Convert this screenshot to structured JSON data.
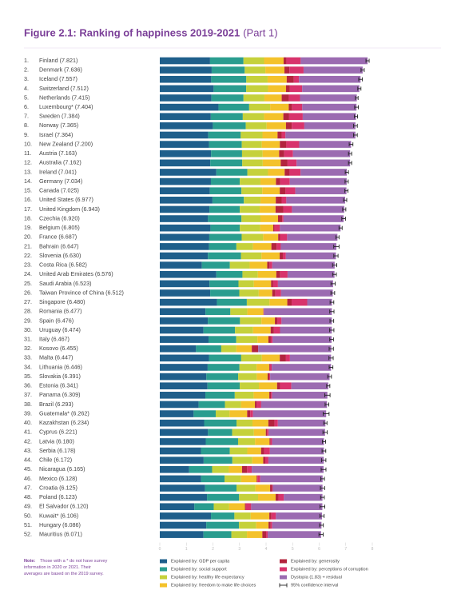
{
  "chart_data": {
    "type": "stacked-bar-horizontal",
    "title": "Figure 2.1: Ranking of happiness 2019-2021",
    "title_part": "(Part 1)",
    "ranks": [
      "1.",
      "2.",
      "3.",
      "4.",
      "5.",
      "6.",
      "7.",
      "8.",
      "9.",
      "10.",
      "11.",
      "12.",
      "13.",
      "14.",
      "15.",
      "16.",
      "17.",
      "18.",
      "19.",
      "20.",
      "21.",
      "22.",
      "23.",
      "24.",
      "25.",
      "26.",
      "27.",
      "28.",
      "29.",
      "30.",
      "31.",
      "32.",
      "33.",
      "34.",
      "35.",
      "36.",
      "37.",
      "38.",
      "39.",
      "40.",
      "41.",
      "42.",
      "43.",
      "44.",
      "45.",
      "46.",
      "47.",
      "48.",
      "49.",
      "50.",
      "51.",
      "52."
    ],
    "categories": [
      "Finland (7.821)",
      "Denmark (7.636)",
      "Iceland (7.557)",
      "Switzerland (7.512)",
      "Netherlands (7.415)",
      "Luxembourg* (7.404)",
      "Sweden (7.384)",
      "Norway (7.365)",
      "Israel (7.364)",
      "New Zealand (7.200)",
      "Austria (7.163)",
      "Australia (7.162)",
      "Ireland (7.041)",
      "Germany (7.034)",
      "Canada (7.025)",
      "United States (6.977)",
      "United Kingdom (6.943)",
      "Czechia (6.920)",
      "Belgium (6.805)",
      "France (6.687)",
      "Bahrain (6.647)",
      "Slovenia (6.630)",
      "Costa Rica (6.582)",
      "United Arab Emirates (6.576)",
      "Saudi Arabia (6.523)",
      "Taiwan Province of China (6.512)",
      "Singapore (6.480)",
      "Romania (6.477)",
      "Spain (6.476)",
      "Uruguay (6.474)",
      "Italy (6.467)",
      "Kosovo (6.455)",
      "Malta (6.447)",
      "Lithuania (6.446)",
      "Slovakia (6.391)",
      "Estonia (6.341)",
      "Panama (6.309)",
      "Brazil (6.293)",
      "Guatemala* (6.262)",
      "Kazakhstan (6.234)",
      "Cyprus (6.221)",
      "Latvia (6.180)",
      "Serbia (6.178)",
      "Chile (6.172)",
      "Nicaragua (6.165)",
      "Mexico (6.128)",
      "Croatia (6.125)",
      "Poland (6.123)",
      "El Salvador (6.120)",
      "Kuwait* (6.106)",
      "Hungary (6.086)",
      "Mauritius (6.071)"
    ],
    "scores": [
      7.821,
      7.636,
      7.557,
      7.512,
      7.415,
      7.404,
      7.384,
      7.365,
      7.364,
      7.2,
      7.163,
      7.162,
      7.041,
      7.034,
      7.025,
      6.977,
      6.943,
      6.92,
      6.805,
      6.687,
      6.647,
      6.63,
      6.582,
      6.576,
      6.523,
      6.512,
      6.48,
      6.477,
      6.476,
      6.474,
      6.467,
      6.455,
      6.447,
      6.446,
      6.391,
      6.341,
      6.309,
      6.293,
      6.262,
      6.234,
      6.221,
      6.18,
      6.178,
      6.172,
      6.165,
      6.128,
      6.125,
      6.123,
      6.12,
      6.106,
      6.086,
      6.071
    ],
    "errors": [
      0.06,
      0.06,
      0.07,
      0.06,
      0.05,
      0.07,
      0.06,
      0.07,
      0.07,
      0.07,
      0.06,
      0.06,
      0.06,
      0.06,
      0.06,
      0.06,
      0.06,
      0.07,
      0.06,
      0.06,
      0.1,
      0.08,
      0.08,
      0.07,
      0.08,
      0.07,
      0.07,
      0.08,
      0.07,
      0.08,
      0.07,
      0.08,
      0.08,
      0.07,
      0.07,
      0.06,
      0.1,
      0.07,
      0.11,
      0.06,
      0.08,
      0.06,
      0.07,
      0.08,
      0.09,
      0.07,
      0.08,
      0.07,
      0.09,
      0.08,
      0.07,
      0.08
    ],
    "series": [
      {
        "name": "Explained by: GDP per capita",
        "color": "#1f5f8b",
        "values": [
          1.892,
          1.953,
          1.936,
          2.026,
          1.945,
          2.209,
          1.92,
          1.997,
          1.826,
          1.852,
          1.931,
          1.9,
          2.129,
          1.924,
          1.886,
          1.982,
          1.867,
          1.815,
          1.907,
          1.863,
          1.854,
          1.81,
          1.584,
          2.129,
          1.87,
          1.897,
          2.149,
          1.719,
          1.808,
          1.643,
          1.834,
          1.364,
          1.851,
          1.802,
          1.753,
          1.797,
          1.715,
          1.462,
          1.274,
          1.669,
          1.815,
          1.729,
          1.55,
          1.651,
          1.105,
          1.552,
          1.705,
          1.776,
          1.301,
          1.926,
          1.748,
          1.644
        ]
      },
      {
        "name": "Explained by: social support",
        "color": "#2a9d8f",
        "values": [
          1.258,
          1.243,
          1.32,
          1.226,
          1.206,
          1.155,
          1.204,
          1.239,
          1.221,
          1.235,
          1.165,
          1.203,
          1.166,
          1.088,
          1.188,
          1.182,
          1.143,
          1.26,
          1.106,
          1.219,
          1.029,
          1.249,
          1.054,
          0.982,
          1.092,
          1.095,
          1.127,
          0.937,
          1.211,
          1.189,
          1.043,
          0.949,
          1.213,
          1.198,
          1.197,
          1.213,
          1.107,
          0.991,
          0.831,
          1.219,
          0.909,
          1.218,
          1.086,
          1.08,
          0.864,
          0.886,
          1.183,
          1.209,
          0.731,
          0.882,
          1.233,
          1.05
        ]
      },
      {
        "name": "Explained by: healthy life expectancy",
        "color": "#c5d13b",
        "values": [
          0.775,
          0.777,
          0.803,
          0.822,
          0.787,
          0.79,
          0.803,
          0.786,
          0.818,
          0.752,
          0.774,
          0.772,
          0.779,
          0.776,
          0.783,
          0.628,
          0.75,
          0.715,
          0.764,
          0.808,
          0.625,
          0.769,
          0.744,
          0.581,
          0.577,
          0.733,
          0.851,
          0.64,
          0.808,
          0.679,
          0.799,
          0.57,
          0.776,
          0.644,
          0.7,
          0.72,
          0.709,
          0.603,
          0.522,
          0.6,
          0.819,
          0.637,
          0.658,
          0.748,
          0.631,
          0.623,
          0.709,
          0.714,
          0.581,
          0.613,
          0.65,
          0.586
        ]
      },
      {
        "name": "Explained by: freedom to make life choices",
        "color": "#f4c22b",
        "values": [
          0.736,
          0.719,
          0.718,
          0.677,
          0.651,
          0.7,
          0.724,
          0.728,
          0.568,
          0.68,
          0.623,
          0.676,
          0.627,
          0.585,
          0.659,
          0.574,
          0.597,
          0.66,
          0.492,
          0.567,
          0.693,
          0.685,
          0.661,
          0.693,
          0.651,
          0.508,
          0.672,
          0.603,
          0.505,
          0.662,
          0.412,
          0.58,
          0.676,
          0.475,
          0.408,
          0.685,
          0.592,
          0.524,
          0.662,
          0.599,
          0.448,
          0.548,
          0.52,
          0.414,
          0.496,
          0.585,
          0.555,
          0.661,
          0.592,
          0.702,
          0.462,
          0.581
        ]
      },
      {
        "name": "Explained by: generosity",
        "color": "#b3243e",
        "values": [
          0.109,
          0.188,
          0.27,
          0.147,
          0.271,
          0.12,
          0.218,
          0.217,
          0.155,
          0.245,
          0.193,
          0.258,
          0.19,
          0.163,
          0.217,
          0.22,
          0.289,
          0.158,
          0.049,
          0.07,
          0.199,
          0.118,
          0.089,
          0.147,
          0.078,
          0.119,
          0.163,
          0.007,
          0.101,
          0.124,
          0.091,
          0.24,
          0.233,
          0.026,
          0.063,
          0.11,
          0.06,
          0.071,
          0.116,
          0.232,
          0.042,
          0.04,
          0.113,
          0.077,
          0.192,
          0.028,
          0.08,
          0.105,
          0.037,
          0.078,
          0.082,
          0.14
        ]
      },
      {
        "name": "Explained by: perceptions of corruption",
        "color": "#d8336c",
        "values": [
          0.534,
          0.532,
          0.191,
          0.461,
          0.419,
          0.388,
          0.512,
          0.474,
          0.143,
          0.483,
          0.329,
          0.341,
          0.408,
          0.358,
          0.368,
          0.177,
          0.329,
          0.048,
          0.204,
          0.266,
          0.155,
          0.115,
          0.102,
          0.278,
          0.18,
          0.214,
          0.587,
          0.014,
          0.149,
          0.229,
          0.07,
          0.0,
          0.15,
          0.069,
          0.033,
          0.427,
          0.047,
          0.166,
          0.105,
          0.126,
          0.065,
          0.056,
          0.218,
          0.118,
          0.173,
          0.107,
          0.023,
          0.206,
          0.198,
          0.17,
          0.057,
          0.061
        ]
      },
      {
        "name": "Dystopia (1.83) + residual",
        "color": "#9b6bb1",
        "values": [
          2.517,
          2.224,
          2.319,
          2.153,
          2.136,
          2.042,
          2.003,
          1.924,
          2.633,
          1.953,
          2.148,
          2.012,
          1.742,
          2.14,
          1.924,
          2.214,
          1.968,
          2.264,
          2.283,
          1.894,
          2.092,
          1.884,
          2.348,
          1.766,
          2.075,
          1.946,
          0.931,
          2.557,
          1.894,
          1.948,
          2.218,
          2.752,
          1.548,
          2.232,
          2.237,
          1.389,
          2.079,
          2.476,
          2.752,
          1.789,
          2.123,
          1.952,
          2.033,
          2.084,
          2.704,
          2.347,
          1.87,
          1.452,
          2.68,
          1.735,
          1.854,
          2.009
        ]
      }
    ],
    "ci_label": "95% confidence interval",
    "xlim": [
      0,
      8
    ],
    "xticks": [
      0,
      1,
      2,
      3,
      4,
      5,
      6,
      7,
      8
    ],
    "note_label": "Note:",
    "note": "Those with a * do not have survey information in 2020 or 2021. Their averages are based on the 2019 survey."
  }
}
